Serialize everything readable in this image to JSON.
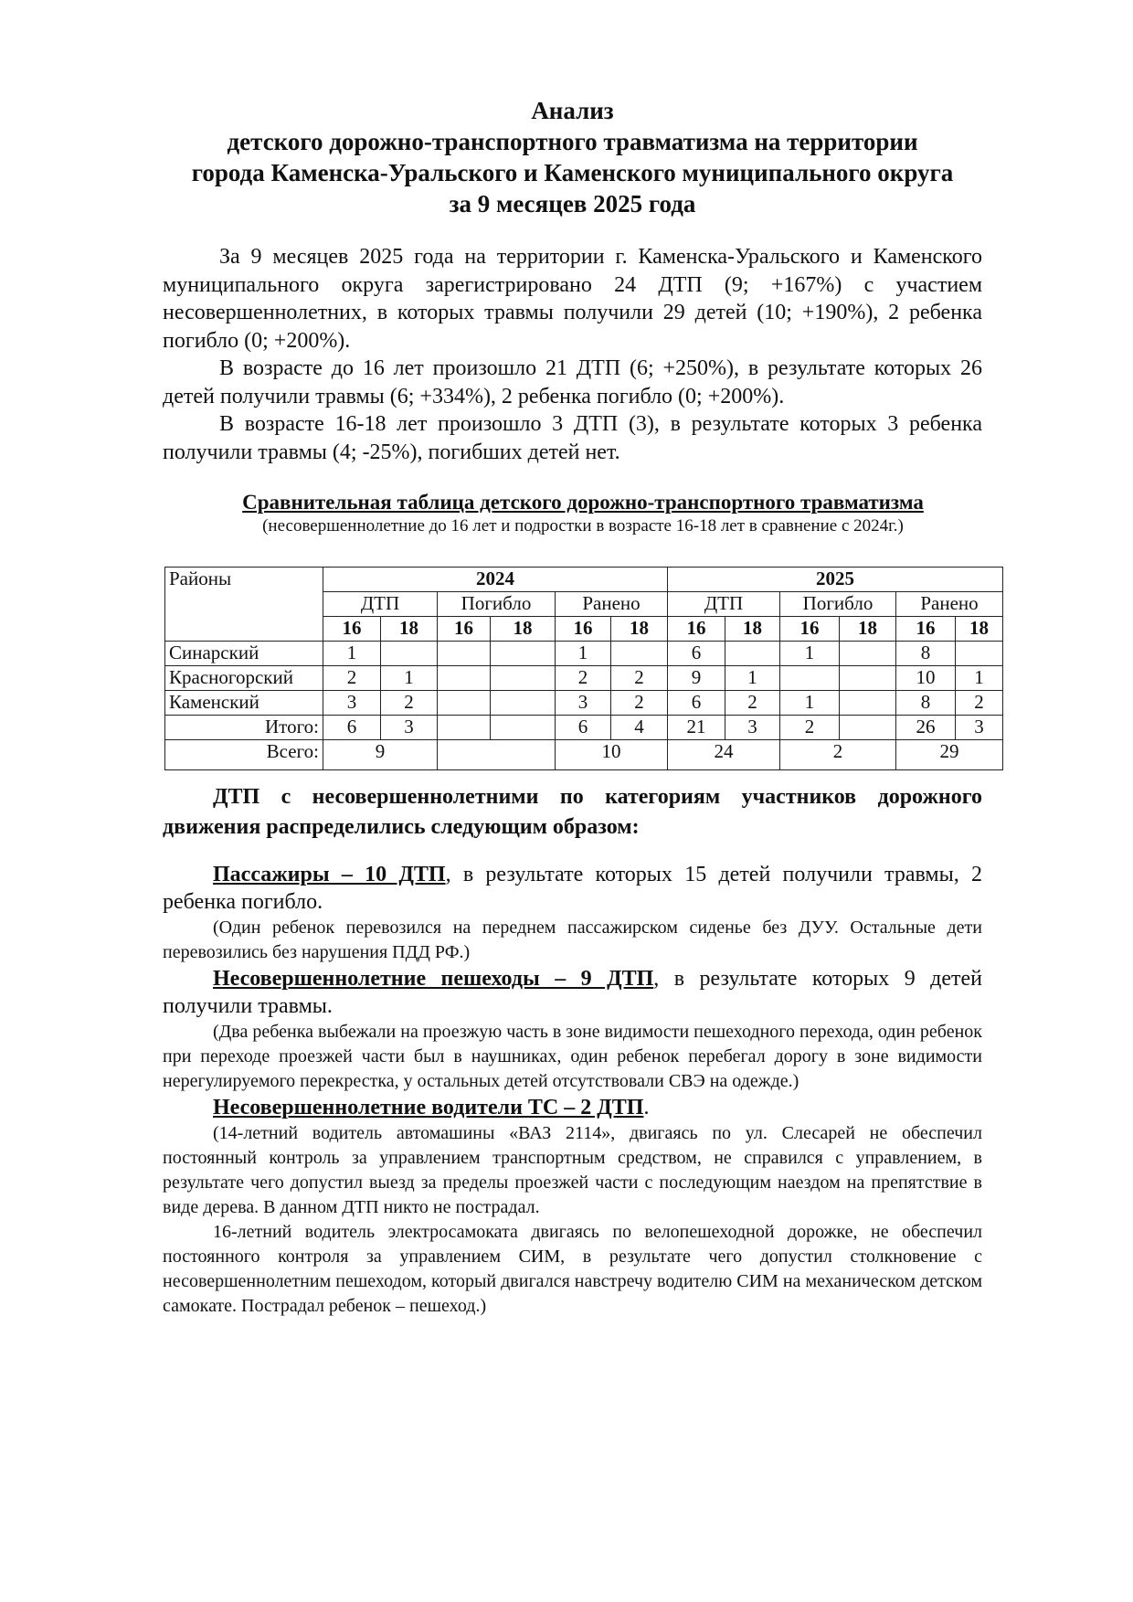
{
  "title": {
    "lines": [
      "Анализ",
      "детского дорожно-транспортного травматизма на территории",
      "города Каменска-Уральского и Каменского муниципального округа",
      "за 9 месяцев 2025 года"
    ]
  },
  "intro": [
    "За 9 месяцев 2025 года на территории г. Каменска-Уральского и Каменского муниципального округа зарегистрировано 24 ДТП (9; +167%) с участием несовершеннолетних, в которых травмы получили 29 детей (10; +190%), 2 ребенка погибло (0; +200%).",
    "В возрасте до 16 лет произошло 21 ДТП (6; +250%), в результате которых 26 детей получили травмы (6; +334%), 2 ребенка погибло (0; +200%).",
    "В возрасте 16-18 лет произошло 3 ДТП (3), в результате которых 3 ребенка получили травмы (4; -25%), погибших детей нет."
  ],
  "table": {
    "title": "Сравнительная таблица детского дорожно-транспортного травматизма",
    "subtitle": "(несовершеннолетние до 16 лет и подростки в возрасте 16-18 лет в сравнение с 2024г.)",
    "col_district": "Районы",
    "years": [
      "2024",
      "2025"
    ],
    "groups": [
      "ДТП",
      "Погибло",
      "Ранено",
      "ДТП",
      "Погибло",
      "Ранено"
    ],
    "ages": [
      "16",
      "18",
      "16",
      "18",
      "16",
      "18",
      "16",
      "18",
      "16",
      "18",
      "16",
      "18"
    ],
    "rows": [
      {
        "name": "Синарский",
        "cells": [
          "1",
          "",
          "",
          "",
          "1",
          "",
          "6",
          "",
          "1",
          "",
          "8",
          ""
        ]
      },
      {
        "name": "Красногорский",
        "cells": [
          "2",
          "1",
          "",
          "",
          "2",
          "2",
          "9",
          "1",
          "",
          "",
          "10",
          "1"
        ]
      },
      {
        "name": "Каменский",
        "cells": [
          "3",
          "2",
          "",
          "",
          "3",
          "2",
          "6",
          "2",
          "1",
          "",
          "8",
          "2"
        ]
      },
      {
        "name": "Итого:",
        "cells": [
          "6",
          "3",
          "",
          "",
          "6",
          "4",
          "21",
          "3",
          "2",
          "",
          "26",
          "3"
        ]
      }
    ],
    "total": {
      "name": "Всего:",
      "cells": [
        "9",
        "",
        "10",
        "24",
        "2",
        "29"
      ]
    }
  },
  "categories": {
    "heading": "ДТП с несовершеннолетними по категориям участников дорожного движения распределились следующим образом:",
    "passengers": {
      "label": "Пассажиры – 10 ДТП",
      "text": ", в результате которых 15 детей получили травмы, 2 ребенка погибло.",
      "note": "(Один ребенок перевозился на переднем пассажирском сиденье без ДУУ. Остальные дети перевозились без нарушения ПДД РФ.)"
    },
    "pedestrians": {
      "label": "Несовершеннолетние пешеходы – 9 ДТП",
      "text": ", в результате которых 9 детей получили травмы.",
      "note": "(Два ребенка выбежали на проезжую часть в зоне видимости пешеходного перехода, один ребенок при переходе проезжей части был в наушниках, один ребенок перебегал дорогу в зоне видимости нерегулируемого перекрестка, у остальных детей отсутствовали СВЭ на одежде.)"
    },
    "drivers": {
      "label": "Несовершеннолетние водители ТС – 2 ДТП",
      "text": ".",
      "note1": "(14-летний водитель автомашины «ВАЗ 2114», двигаясь по ул. Слесарей не обеспечил постоянный контроль за управлением транспортным средством, не справился с управлением, в результате чего допустил выезд за пределы проезжей части с последующим наездом на препятствие в виде дерева. В данном ДТП никто не пострадал.",
      "note2": "16-летний водитель электросамоката двигаясь по велопешеходной дорожке, не обеспечил постоянного контроля за управлением СИМ, в результате чего допустил столкновение с несовершеннолетним пешеходом, который двигался навстречу водителю СИМ на механическом детском самокате. Пострадал ребенок – пешеход.)"
    }
  }
}
